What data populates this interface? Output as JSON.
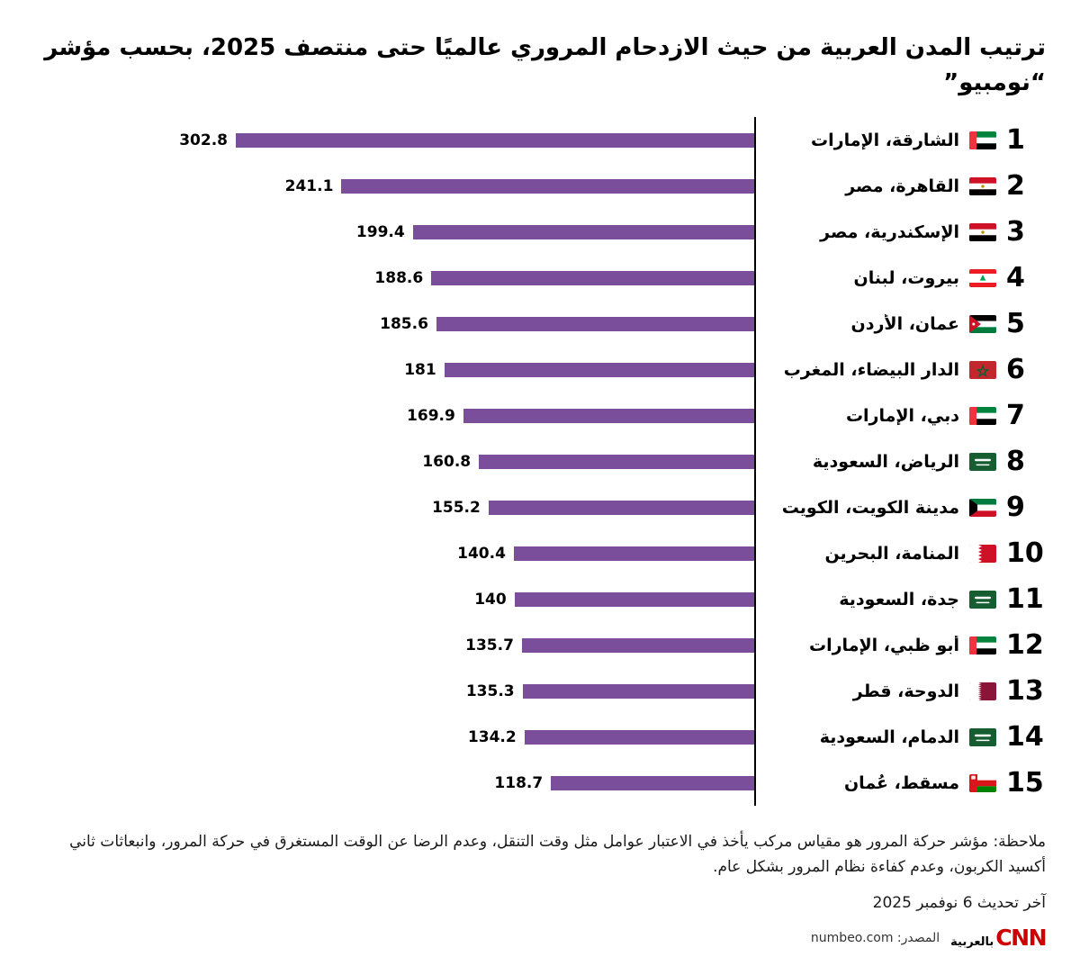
{
  "title": "ترتيب المدن العربية من حيث الازدحام المروري عالميًا حتى منتصف 2025، بحسب مؤشر “نومبيو”",
  "chart_data": {
    "type": "bar",
    "orientation": "horizontal",
    "direction": "rtl",
    "value_axis_max": 302.8,
    "bar_color": "#7B4E9C",
    "axis_color": "#000000",
    "rows": [
      {
        "rank": 1,
        "city": "الشارقة، الإمارات",
        "flag": "uae",
        "value": 302.8,
        "value_label": "302.8"
      },
      {
        "rank": 2,
        "city": "القاهرة، مصر",
        "flag": "egypt",
        "value": 241.1,
        "value_label": "241.1"
      },
      {
        "rank": 3,
        "city": "الإسكندرية، مصر",
        "flag": "egypt",
        "value": 199.4,
        "value_label": "199.4"
      },
      {
        "rank": 4,
        "city": "بيروت، لبنان",
        "flag": "lebanon",
        "value": 188.6,
        "value_label": "188.6"
      },
      {
        "rank": 5,
        "city": "عمان، الأردن",
        "flag": "jordan",
        "value": 185.6,
        "value_label": "185.6"
      },
      {
        "rank": 6,
        "city": "الدار البيضاء، المغرب",
        "flag": "morocco",
        "value": 181,
        "value_label": "181"
      },
      {
        "rank": 7,
        "city": "دبي، الإمارات",
        "flag": "uae",
        "value": 169.9,
        "value_label": "169.9"
      },
      {
        "rank": 8,
        "city": "الرياض، السعودية",
        "flag": "saudi",
        "value": 160.8,
        "value_label": "160.8"
      },
      {
        "rank": 9,
        "city": "مدينة الكويت، الكويت",
        "flag": "kuwait",
        "value": 155.2,
        "value_label": "155.2"
      },
      {
        "rank": 10,
        "city": "المنامة، البحرين",
        "flag": "bahrain",
        "value": 140.4,
        "value_label": "140.4"
      },
      {
        "rank": 11,
        "city": "جدة، السعودية",
        "flag": "saudi",
        "value": 140,
        "value_label": "140"
      },
      {
        "rank": 12,
        "city": "أبو ظبي، الإمارات",
        "flag": "uae",
        "value": 135.7,
        "value_label": "135.7"
      },
      {
        "rank": 13,
        "city": "الدوحة، قطر",
        "flag": "qatar",
        "value": 135.3,
        "value_label": "135.3"
      },
      {
        "rank": 14,
        "city": "الدمام، السعودية",
        "flag": "saudi",
        "value": 134.2,
        "value_label": "134.2"
      },
      {
        "rank": 15,
        "city": "مسقط، عُمان",
        "flag": "oman",
        "value": 118.7,
        "value_label": "118.7"
      }
    ]
  },
  "note": "ملاحظة: مؤشر حركة المرور هو مقياس مركب يأخذ في الاعتبار عوامل مثل وقت التنقل، وعدم الرضا عن الوقت المستغرق في حركة المرور، وانبعاثات ثاني أكسيد الكربون، وعدم كفاءة نظام المرور بشكل عام.",
  "last_updated": "آخر تحديث 6 نوفمبر 2025",
  "source": {
    "text": "المصدر: numbeo.com"
  },
  "logo": {
    "brand": "CNN",
    "arabic": "بالعربية",
    "color": "#CC0000"
  }
}
